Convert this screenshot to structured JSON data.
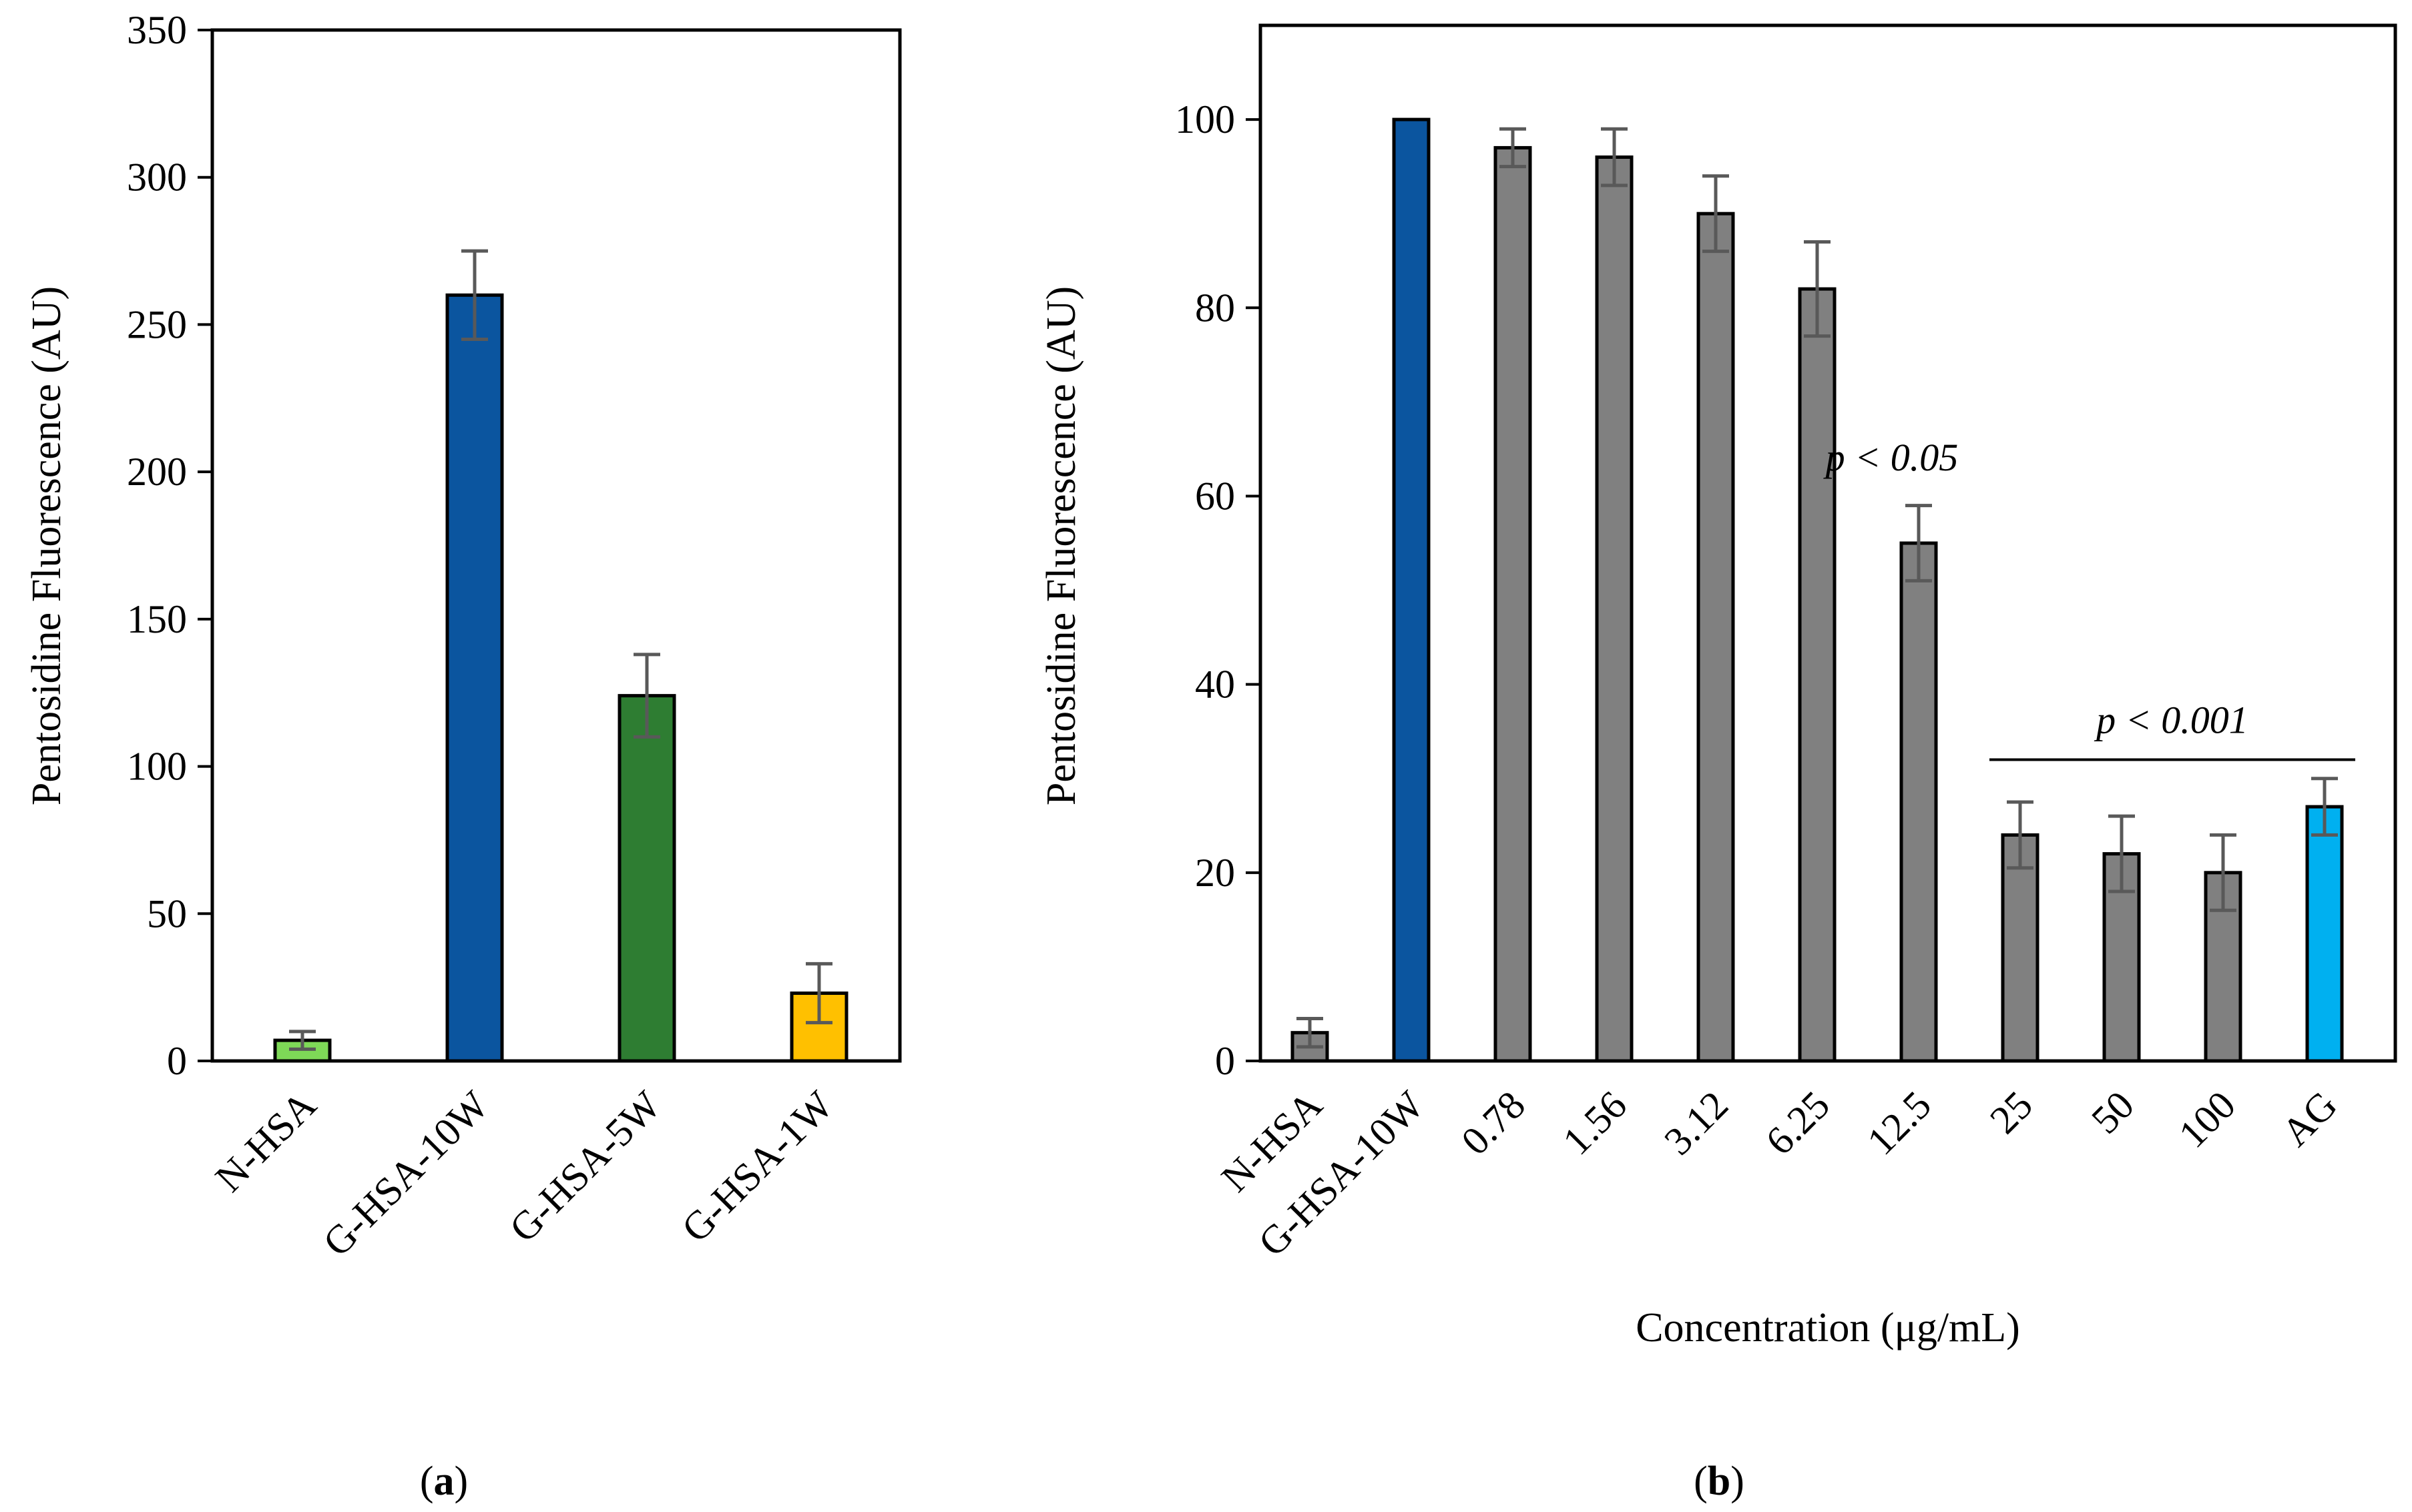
{
  "chart_data": [
    {
      "id": "a",
      "type": "bar",
      "panel_label": "a",
      "title": "",
      "xlabel": "",
      "ylabel": "Pentosidine Fluorescence (AU)",
      "ylim": [
        0,
        350
      ],
      "yticks": [
        0,
        50,
        100,
        150,
        200,
        250,
        300,
        350
      ],
      "grid": false,
      "categories": [
        "N-HSA",
        "G-HSA-10W",
        "G-HSA-5W",
        "G-HSA-1W"
      ],
      "values": [
        7,
        260,
        124,
        23
      ],
      "errors": [
        3,
        15,
        14,
        10
      ],
      "colors": [
        "#7ED957",
        "#0B559F",
        "#2E7D32",
        "#FFC000"
      ],
      "annotations": []
    },
    {
      "id": "b",
      "type": "bar",
      "panel_label": "b",
      "title": "",
      "xlabel": "Concentration (μg/mL)",
      "ylabel": "Pentosidine Fluorescence (AU)",
      "ylim": [
        0,
        110
      ],
      "yticks": [
        0,
        20,
        40,
        60,
        80,
        100
      ],
      "grid": false,
      "categories": [
        "N-HSA",
        "G-HSA-10W",
        "0.78",
        "1.56",
        "3.12",
        "6.25",
        "12.5",
        "25",
        "50",
        "100",
        "AG"
      ],
      "values": [
        3,
        100,
        97,
        96,
        90,
        82,
        55,
        24,
        22,
        20,
        27
      ],
      "errors": [
        1.5,
        0,
        2,
        3,
        4,
        5,
        4,
        3.5,
        4,
        4,
        3
      ],
      "colors": [
        "#808080",
        "#0B559F",
        "#808080",
        "#808080",
        "#808080",
        "#808080",
        "#808080",
        "#808080",
        "#808080",
        "#808080",
        "#00B0F0"
      ],
      "annotations": [
        {
          "text": "p < 0.05",
          "near_category": "12.5",
          "value": 64
        },
        {
          "text": "p < 0.001",
          "from_category": "25",
          "to_category": "AG",
          "value": 32
        }
      ]
    }
  ]
}
